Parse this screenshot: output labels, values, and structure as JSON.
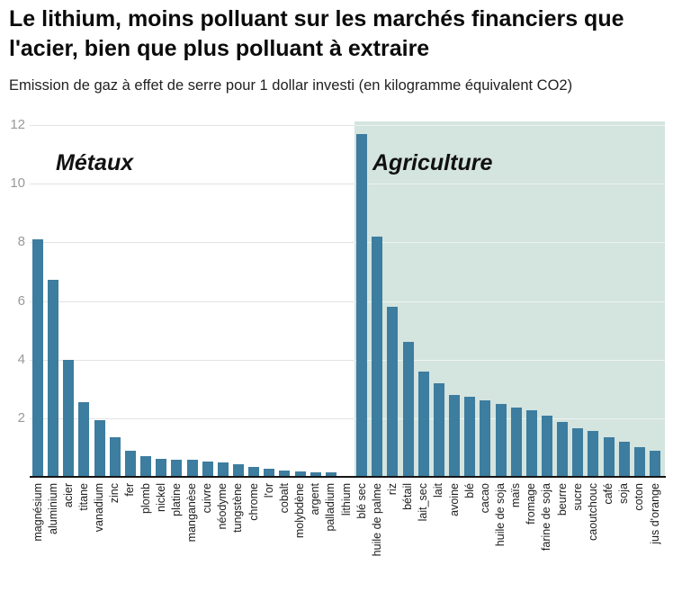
{
  "header": {
    "title": "Le lithium, moins polluant sur les marchés financiers que l'acier, bien que plus polluant à extraire",
    "title_lines": [
      "Le lithium, moins polluant sur les marchés financiers que",
      "l'acier, bien que plus polluant à extraire"
    ],
    "subtitle": "Emission de gaz à effet de serre pour 1 dollar investi (en kilogramme équivalent CO2)"
  },
  "chart_data": {
    "type": "bar",
    "title": "Le lithium, moins polluant sur les marchés financiers que l'acier, bien que plus polluant à extraire",
    "subtitle": "Emission de gaz à effet de serre pour 1 dollar investi (en kilogramme équivalent CO2)",
    "xlabel": "",
    "ylabel": "",
    "ylim": [
      0,
      12
    ],
    "yticks": [
      2,
      4,
      6,
      8,
      10,
      12
    ],
    "grid": true,
    "legend": "none",
    "bar_color": "#3d7d9f",
    "groups": [
      {
        "label": "Métaux",
        "background": "#ffffff",
        "categories": [
          "magnésium",
          "aluminium",
          "acier",
          "titane",
          "vanadium",
          "zinc",
          "fer",
          "plomb",
          "nickel",
          "platine",
          "manganèse",
          "cuivre",
          "néodyme",
          "tungstène",
          "chrome",
          "l'or",
          "cobalt",
          "molybdène",
          "argent",
          "palladium",
          "lithium"
        ],
        "values": [
          8.1,
          6.72,
          4.0,
          2.55,
          1.95,
          1.35,
          0.9,
          0.7,
          0.62,
          0.6,
          0.57,
          0.51,
          0.5,
          0.42,
          0.33,
          0.29,
          0.21,
          0.19,
          0.16,
          0.14,
          0.03
        ]
      },
      {
        "label": "Agriculture",
        "background": "#d4e4df",
        "categories": [
          "blé sec",
          "huile de palme",
          "riz",
          "bétail",
          "lait_sec",
          "lait",
          "avoine",
          "blé",
          "cacao",
          "huile de soja",
          "maïs",
          "fromage",
          "farine de soja",
          "beurre",
          "sucre",
          "caoutchouc",
          "café",
          "soja",
          "coton",
          "jus d'orange"
        ],
        "values": [
          11.7,
          8.2,
          5.8,
          4.6,
          3.6,
          3.2,
          2.78,
          2.72,
          2.62,
          2.48,
          2.38,
          2.26,
          2.08,
          1.87,
          1.65,
          1.56,
          1.35,
          1.19,
          1.01,
          0.88
        ]
      }
    ]
  },
  "colors": {
    "bar": "#3d7d9f",
    "agriculture_panel": "#d4e4df",
    "gridline": "#e3e3e3",
    "axis": "#151515",
    "y_tick_text": "#999999",
    "x_label_text": "#1c1c1c"
  }
}
